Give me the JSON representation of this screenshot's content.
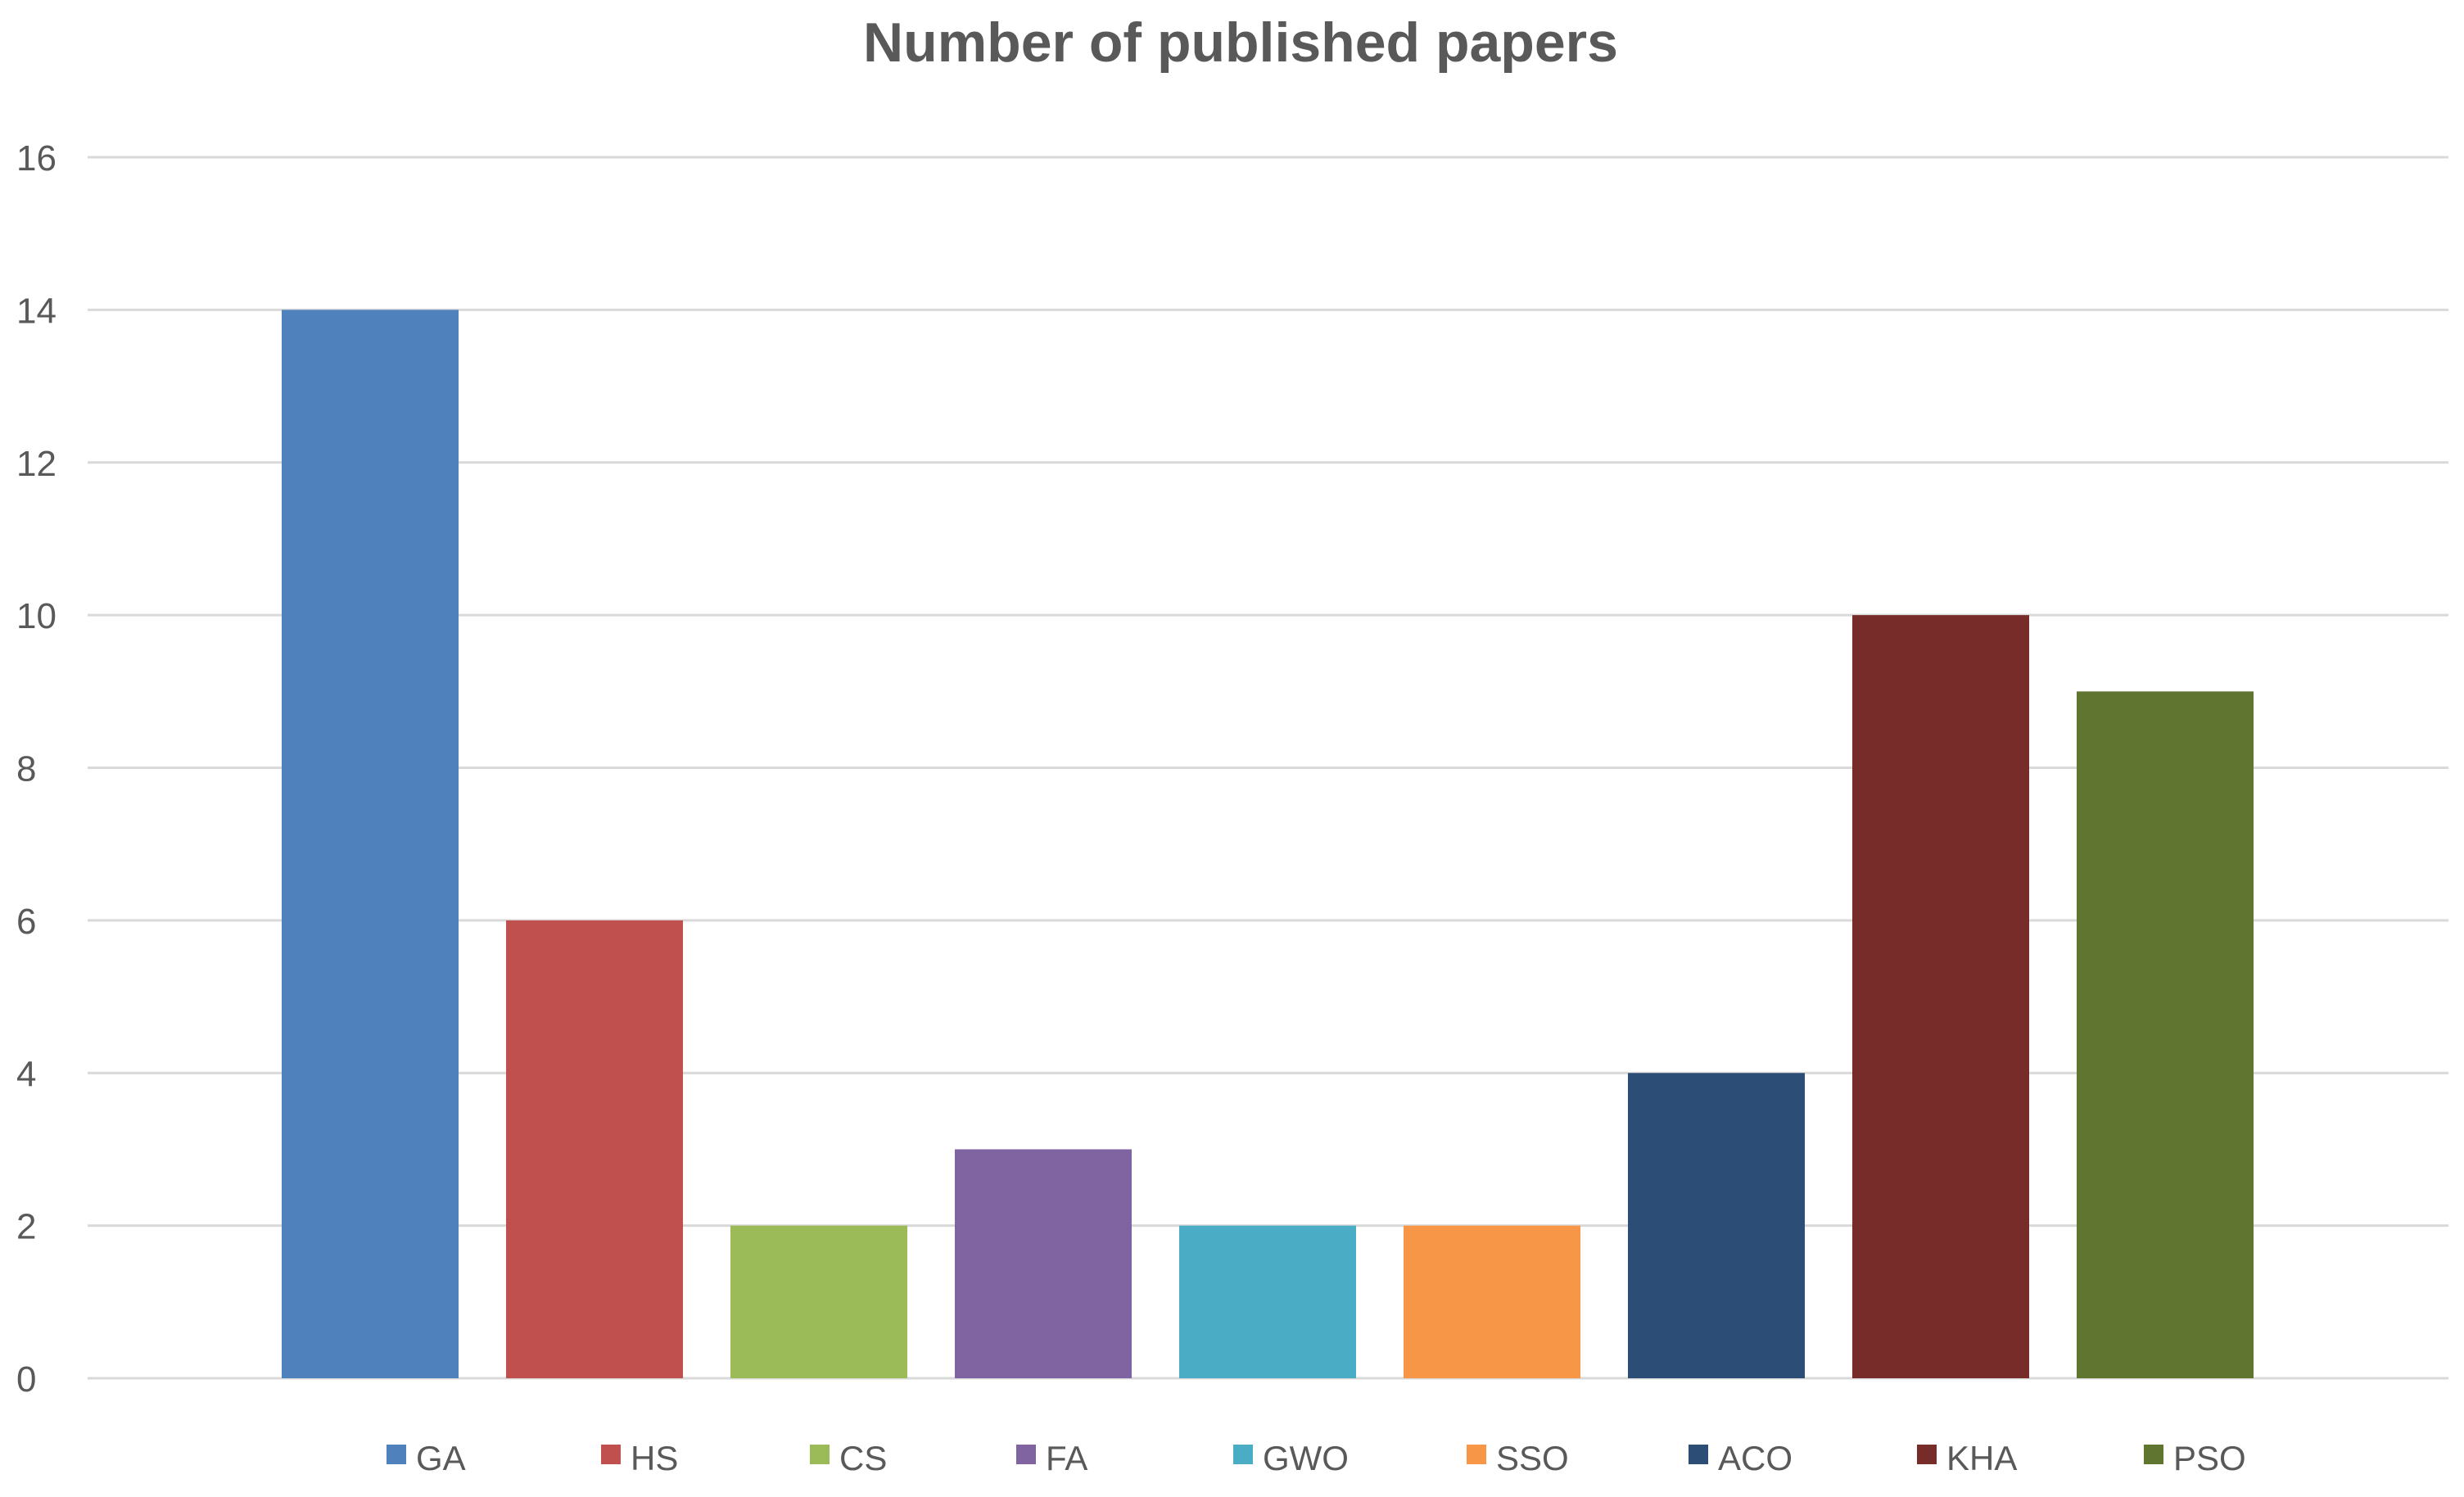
{
  "chart_data": {
    "type": "bar",
    "title": "Number of published papers",
    "xlabel": "",
    "ylabel": "",
    "ylim": [
      0,
      16
    ],
    "yticks": [
      "0",
      "2",
      "4",
      "6",
      "8",
      "10",
      "12",
      "14",
      "16"
    ],
    "grid": true,
    "legend_position": "bottom",
    "categories": [
      "GA",
      "HS",
      "CS",
      "FA",
      "GWO",
      "SSO",
      "ACO",
      "KHA",
      "PSO"
    ],
    "values": [
      14,
      6,
      2,
      3,
      2,
      2,
      4,
      10,
      9
    ],
    "colors": [
      "#4F81BD",
      "#C0504D",
      "#9BBB59",
      "#8064A2",
      "#4BACC6",
      "#F79646",
      "#2C4D75",
      "#772C2A",
      "#5F7530"
    ]
  }
}
